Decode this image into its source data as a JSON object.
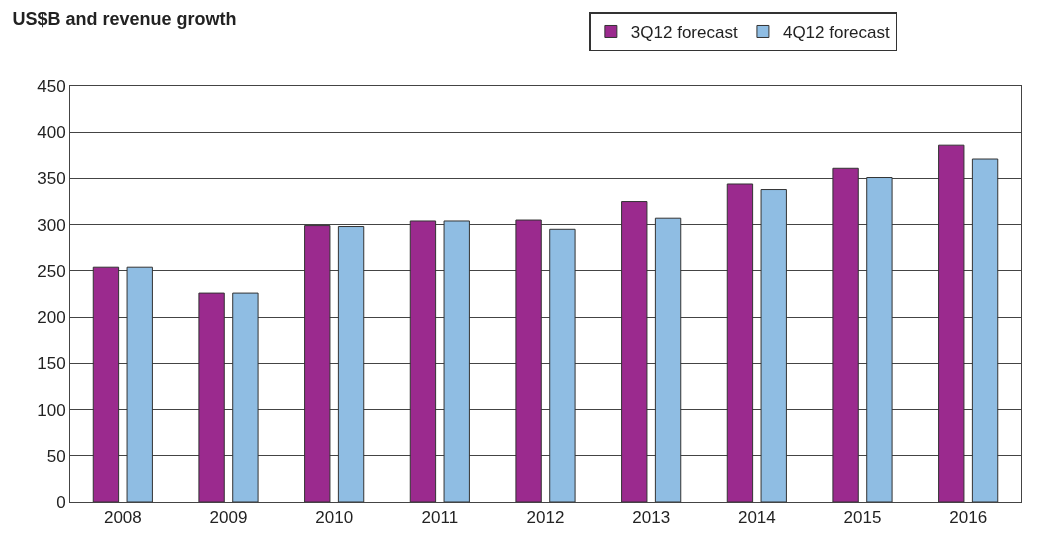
{
  "chart_data": {
    "type": "bar",
    "title": "US$B and revenue growth",
    "categories": [
      "2008",
      "2009",
      "2010",
      "2011",
      "2012",
      "2013",
      "2014",
      "2015",
      "2016"
    ],
    "series": [
      {
        "name": "3Q12 forecast",
        "color": "#9b2a8e",
        "values": [
          254,
          226,
          299,
          304,
          305,
          325,
          344,
          361,
          386
        ]
      },
      {
        "name": "4Q12 forecast",
        "color": "#8fbde3",
        "values": [
          254,
          226,
          298,
          304,
          295,
          307,
          338,
          351,
          371
        ]
      }
    ],
    "ylim": [
      0,
      450
    ],
    "yticks": [
      0,
      50,
      100,
      150,
      200,
      250,
      300,
      350,
      400,
      450
    ],
    "grid": "y",
    "legend": "top right"
  }
}
